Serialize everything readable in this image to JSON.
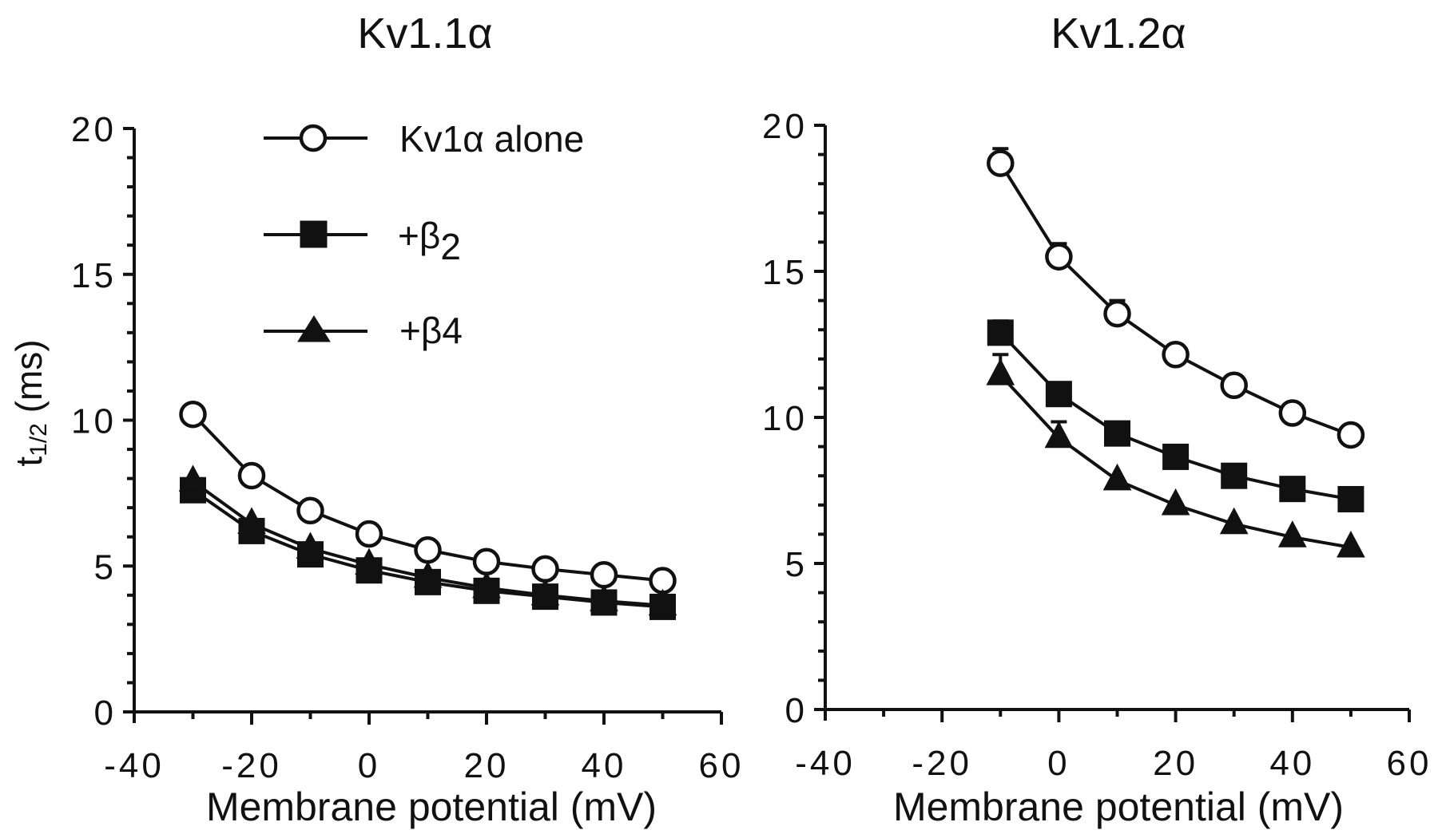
{
  "figure": {
    "ylabel_main": "t",
    "ylabel_sub": "1/2",
    "ylabel_unit": " (ms)"
  },
  "legend": {
    "items": [
      {
        "label_main": "Kv1",
        "label_greek": "α",
        "label_rest": " alone",
        "marker": "open-circle"
      },
      {
        "label_main": "+β",
        "label_sub": "2",
        "marker": "filled-square"
      },
      {
        "label_main": "+β4",
        "marker": "filled-triangle"
      }
    ],
    "placement": "top-center of left panel"
  },
  "chart_data": [
    {
      "type": "line",
      "title": "Kv1.1α",
      "xlabel": "Membrane potential (mV)",
      "ylabel": "t1/2 (ms)",
      "xlim": [
        -40,
        60
      ],
      "ylim": [
        0,
        20
      ],
      "xticks": [
        -40,
        -20,
        0,
        20,
        40,
        60
      ],
      "xtick_labels": [
        "-40",
        "-20",
        "0",
        "20",
        "40",
        "60"
      ],
      "yticks": [
        0,
        5,
        10,
        15,
        20
      ],
      "ytick_labels": [
        "0",
        "5",
        "10",
        "15",
        "20"
      ],
      "x_minor_step": 10,
      "y_minor_step": 1,
      "grid": false,
      "x": [
        -30,
        -20,
        -10,
        0,
        10,
        20,
        30,
        40,
        50
      ],
      "series": [
        {
          "name": "Kv1α alone",
          "marker": "open-circle",
          "values": [
            10.2,
            8.1,
            6.9,
            6.1,
            5.55,
            5.15,
            4.9,
            4.7,
            4.5
          ]
        },
        {
          "name": "+β2",
          "marker": "filled-square",
          "values": [
            7.6,
            6.2,
            5.4,
            4.85,
            4.45,
            4.15,
            3.95,
            3.75,
            3.6
          ]
        },
        {
          "name": "+β4",
          "marker": "filled-triangle",
          "values": [
            7.9,
            6.45,
            5.6,
            5.05,
            4.6,
            4.25,
            4.0,
            3.8,
            3.65
          ]
        }
      ]
    },
    {
      "type": "line",
      "title": "Kv1.2α",
      "xlabel": "Membrane potential (mV)",
      "ylabel": "",
      "xlim": [
        -40,
        60
      ],
      "ylim": [
        0,
        20
      ],
      "xticks": [
        -40,
        -20,
        0,
        20,
        40,
        60
      ],
      "xtick_labels": [
        "-40",
        "-20",
        "0",
        "20",
        "40",
        "60"
      ],
      "yticks": [
        0,
        5,
        10,
        15,
        20
      ],
      "ytick_labels": [
        "0",
        "5",
        "10",
        "15",
        "20"
      ],
      "x_minor_step": 10,
      "y_minor_step": 1,
      "grid": false,
      "x": [
        -10,
        0,
        10,
        20,
        30,
        40,
        50
      ],
      "series": [
        {
          "name": "Kv1α alone",
          "marker": "open-circle",
          "values": [
            18.7,
            15.5,
            13.55,
            12.15,
            11.1,
            10.15,
            9.4
          ],
          "error_upper": [
            19.2,
            15.95,
            14.0,
            null,
            null,
            null,
            null
          ]
        },
        {
          "name": "+β2",
          "marker": "filled-square",
          "values": [
            12.9,
            10.8,
            9.45,
            8.65,
            8.0,
            7.55,
            7.2
          ],
          "error_upper": [
            13.3,
            null,
            null,
            null,
            null,
            null,
            null
          ]
        },
        {
          "name": "+β4",
          "marker": "filled-triangle",
          "values": [
            11.45,
            9.3,
            7.85,
            7.0,
            6.35,
            5.9,
            5.55
          ],
          "error_upper": [
            12.15,
            9.85,
            null,
            null,
            null,
            null,
            null
          ]
        }
      ]
    }
  ]
}
